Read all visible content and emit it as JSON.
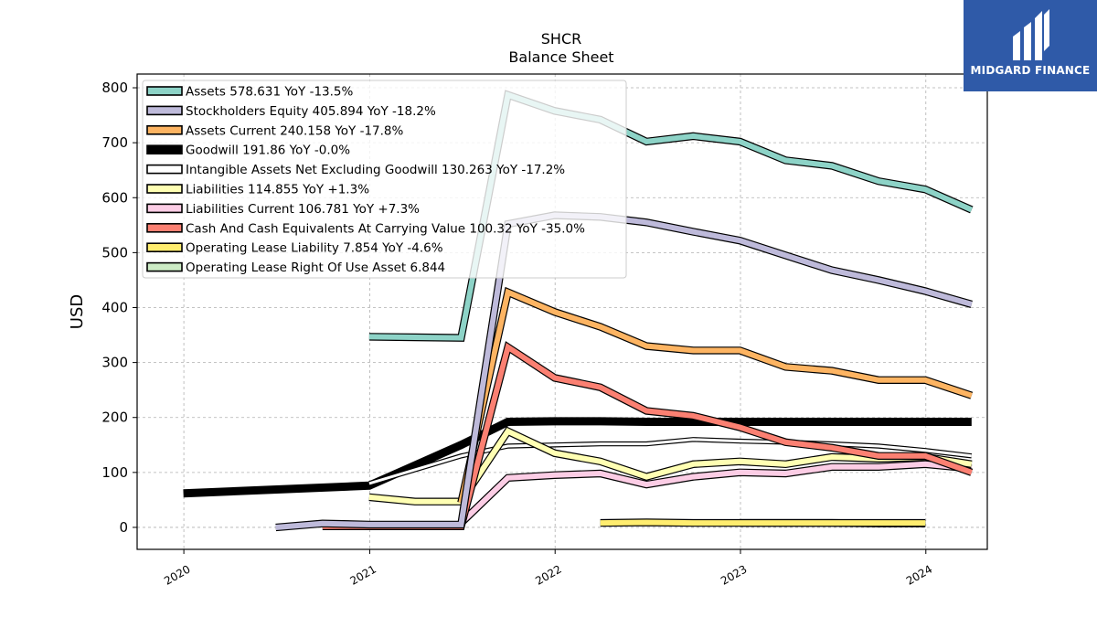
{
  "brand": {
    "name": "MIDGARD FINANCE",
    "icon": "midgard-logo-icon",
    "color": "#2f5aa8"
  },
  "chart_data": {
    "type": "line",
    "title": "SHCR",
    "subtitle": "Balance  Sheet",
    "ylabel": "USD",
    "xlabel": "",
    "xlim": [
      "2019-10-01",
      "2024-05-01"
    ],
    "ylim": [
      -40,
      825
    ],
    "x_ticks": [
      "2020",
      "2021",
      "2022",
      "2023",
      "2024"
    ],
    "x_tick_dates": [
      "2020-01-01",
      "2021-01-01",
      "2022-01-01",
      "2023-01-01",
      "2024-01-01"
    ],
    "y_ticks": [
      0,
      100,
      200,
      300,
      400,
      500,
      600,
      700,
      800
    ],
    "grid": true,
    "legend_position": "top-left",
    "series": [
      {
        "name": "Goodwill",
        "legend": "Goodwill  191.86 YoY -0.0%",
        "color": "#000000",
        "width": 9,
        "points": [
          [
            "2019-12-31",
            62
          ],
          [
            "2020-12-31",
            76
          ],
          [
            "2021-06-30",
            150
          ],
          [
            "2021-09-30",
            192
          ],
          [
            "2021-12-31",
            193
          ],
          [
            "2022-03-31",
            193
          ],
          [
            "2022-06-30",
            192
          ],
          [
            "2022-09-30",
            192
          ],
          [
            "2022-12-31",
            192
          ],
          [
            "2023-03-31",
            192
          ],
          [
            "2023-06-30",
            192
          ],
          [
            "2023-09-30",
            192
          ],
          [
            "2023-12-31",
            192
          ],
          [
            "2024-03-31",
            192
          ]
        ]
      },
      {
        "name": "Intangible Assets Net Excluding Goodwill",
        "legend": "Intangible Assets Net Excluding Goodwill  130.263 YoY -17.2%",
        "color": "#ffffff",
        "width": 3,
        "points": [
          [
            "2020-12-31",
            80
          ],
          [
            "2021-06-30",
            130
          ],
          [
            "2021-09-30",
            148
          ],
          [
            "2021-12-31",
            150
          ],
          [
            "2022-03-31",
            152
          ],
          [
            "2022-06-30",
            152
          ],
          [
            "2022-09-30",
            160
          ],
          [
            "2022-12-31",
            157
          ],
          [
            "2023-03-31",
            155
          ],
          [
            "2023-06-30",
            152
          ],
          [
            "2023-09-30",
            148
          ],
          [
            "2023-12-31",
            140
          ],
          [
            "2024-03-31",
            130
          ]
        ]
      },
      {
        "name": "Operating Lease Right Of Use Asset",
        "legend": "Operating Lease Right Of Use Asset  6.844",
        "color": "#ccebc5",
        "width": 6,
        "points": [
          [
            "2022-12-31",
            8
          ],
          [
            "2023-03-31",
            8
          ],
          [
            "2023-06-30",
            8
          ],
          [
            "2023-09-30",
            7
          ],
          [
            "2023-12-31",
            7
          ]
        ]
      },
      {
        "name": "Operating Lease Liability",
        "legend": "Operating Lease Liability  7.854 YoY -4.6%",
        "color": "#ffed6f",
        "width": 6,
        "points": [
          [
            "2022-03-31",
            8
          ],
          [
            "2022-06-30",
            9
          ],
          [
            "2022-09-30",
            8
          ],
          [
            "2022-12-31",
            8
          ],
          [
            "2023-03-31",
            8
          ],
          [
            "2023-06-30",
            8
          ],
          [
            "2023-09-30",
            8
          ],
          [
            "2023-12-31",
            8
          ]
        ]
      },
      {
        "name": "Liabilities Current",
        "legend": "Liabilities Current  106.781 YoY +7.3%",
        "color": "#fccde5",
        "width": 6,
        "points": [
          [
            "2021-06-30",
            8
          ],
          [
            "2021-09-30",
            90
          ],
          [
            "2021-12-31",
            95
          ],
          [
            "2022-03-31",
            98
          ],
          [
            "2022-06-30",
            78
          ],
          [
            "2022-09-30",
            92
          ],
          [
            "2022-12-31",
            100
          ],
          [
            "2023-03-31",
            98
          ],
          [
            "2023-06-30",
            110
          ],
          [
            "2023-09-30",
            110
          ],
          [
            "2023-12-31",
            115
          ],
          [
            "2024-03-31",
            107
          ]
        ]
      },
      {
        "name": "Liabilities",
        "legend": "Liabilities  114.855 YoY +1.3%",
        "color": "#ffffb3",
        "width": 6,
        "points": [
          [
            "2020-12-31",
            55
          ],
          [
            "2021-03-31",
            47
          ],
          [
            "2021-06-30",
            47
          ],
          [
            "2021-09-30",
            175
          ],
          [
            "2021-12-31",
            135
          ],
          [
            "2022-03-31",
            120
          ],
          [
            "2022-06-30",
            92
          ],
          [
            "2022-09-30",
            115
          ],
          [
            "2022-12-31",
            120
          ],
          [
            "2023-03-31",
            115
          ],
          [
            "2023-06-30",
            128
          ],
          [
            "2023-09-30",
            125
          ],
          [
            "2023-12-31",
            128
          ],
          [
            "2024-03-31",
            115
          ]
        ]
      },
      {
        "name": "Cash And Cash Equivalents At Carrying Value",
        "legend": "Cash And Cash Equivalents At Carrying Value  100.32 YoY -35.0%",
        "color": "#fb8072",
        "width": 6,
        "points": [
          [
            "2020-09-30",
            2
          ],
          [
            "2020-12-31",
            2
          ],
          [
            "2021-03-31",
            2
          ],
          [
            "2021-06-30",
            2
          ],
          [
            "2021-09-30",
            328
          ],
          [
            "2021-12-31",
            272
          ],
          [
            "2022-03-31",
            255
          ],
          [
            "2022-06-30",
            212
          ],
          [
            "2022-09-30",
            203
          ],
          [
            "2022-12-31",
            182
          ],
          [
            "2023-03-31",
            155
          ],
          [
            "2023-06-30",
            145
          ],
          [
            "2023-09-30",
            130
          ],
          [
            "2023-12-31",
            130
          ],
          [
            "2024-03-31",
            100
          ]
        ]
      },
      {
        "name": "Assets Current",
        "legend": "Assets Current  240.158 YoY -17.8%",
        "color": "#fdb462",
        "width": 6,
        "points": [
          [
            "2021-06-30",
            45
          ],
          [
            "2021-09-30",
            428
          ],
          [
            "2021-12-31",
            392
          ],
          [
            "2022-03-31",
            365
          ],
          [
            "2022-06-30",
            330
          ],
          [
            "2022-09-30",
            322
          ],
          [
            "2022-12-31",
            322
          ],
          [
            "2023-03-31",
            292
          ],
          [
            "2023-06-30",
            285
          ],
          [
            "2023-09-30",
            268
          ],
          [
            "2023-12-31",
            268
          ],
          [
            "2024-03-31",
            240
          ]
        ]
      },
      {
        "name": "Stockholders Equity",
        "legend": "Stockholders Equity  405.894 YoY -18.2%",
        "color": "#bebada",
        "width": 6,
        "points": [
          [
            "2020-06-30",
            0
          ],
          [
            "2020-09-30",
            7
          ],
          [
            "2020-12-31",
            5
          ],
          [
            "2021-06-30",
            5
          ],
          [
            "2021-09-30",
            552
          ],
          [
            "2021-12-31",
            568
          ],
          [
            "2022-03-31",
            565
          ],
          [
            "2022-06-30",
            555
          ],
          [
            "2022-09-30",
            538
          ],
          [
            "2022-12-31",
            522
          ],
          [
            "2023-03-31",
            495
          ],
          [
            "2023-06-30",
            468
          ],
          [
            "2023-09-30",
            450
          ],
          [
            "2023-12-31",
            430
          ],
          [
            "2024-03-31",
            406
          ]
        ]
      },
      {
        "name": "Assets",
        "legend": "Assets  578.631 YoY -13.5%",
        "color": "#8dd3c7",
        "width": 6,
        "points": [
          [
            "2020-12-31",
            347
          ],
          [
            "2021-03-31",
            346
          ],
          [
            "2021-06-30",
            345
          ],
          [
            "2021-09-30",
            787
          ],
          [
            "2021-12-31",
            758
          ],
          [
            "2022-03-31",
            742
          ],
          [
            "2022-06-30",
            702
          ],
          [
            "2022-09-30",
            712
          ],
          [
            "2022-12-31",
            702
          ],
          [
            "2023-03-31",
            668
          ],
          [
            "2023-06-30",
            658
          ],
          [
            "2023-09-30",
            630
          ],
          [
            "2023-12-31",
            615
          ],
          [
            "2024-03-31",
            578
          ]
        ]
      }
    ],
    "legend_order": [
      "Assets  578.631 YoY -13.5%",
      "Stockholders Equity  405.894 YoY -18.2%",
      "Assets Current  240.158 YoY -17.8%",
      "Goodwill  191.86 YoY -0.0%",
      "Intangible Assets Net Excluding Goodwill  130.263 YoY -17.2%",
      "Liabilities  114.855 YoY +1.3%",
      "Liabilities Current  106.781 YoY +7.3%",
      "Cash And Cash Equivalents At Carrying Value  100.32 YoY -35.0%",
      "Operating Lease Liability  7.854 YoY -4.6%",
      "Operating Lease Right Of Use Asset  6.844"
    ],
    "legend_colors": [
      "#8dd3c7",
      "#bebada",
      "#fdb462",
      "#000000",
      "#ffffff",
      "#ffffb3",
      "#fccde5",
      "#fb8072",
      "#ffed6f",
      "#ccebc5"
    ]
  }
}
